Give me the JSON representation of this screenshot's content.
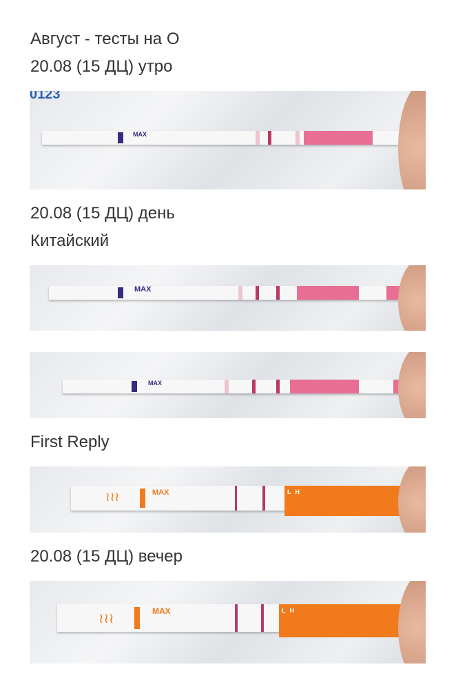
{
  "post": {
    "title": "Август - тесты на О",
    "sections": [
      {
        "caption": "20.08 (15 ДЦ) утро"
      },
      {
        "caption": "20.08 (15 ДЦ) день"
      },
      {
        "caption": "Китайский"
      },
      {
        "caption": "First Reply"
      },
      {
        "caption": "20.08 (15 ДЦ) вечер"
      }
    ],
    "photo_labels": {
      "strip_text": "MAX",
      "package_number": "0123",
      "lh_text": "LH"
    }
  },
  "colors": {
    "text": "#333333",
    "test_pink": "#e86f93",
    "test_orange": "#f07a1c",
    "control_line": "#b93a63"
  }
}
